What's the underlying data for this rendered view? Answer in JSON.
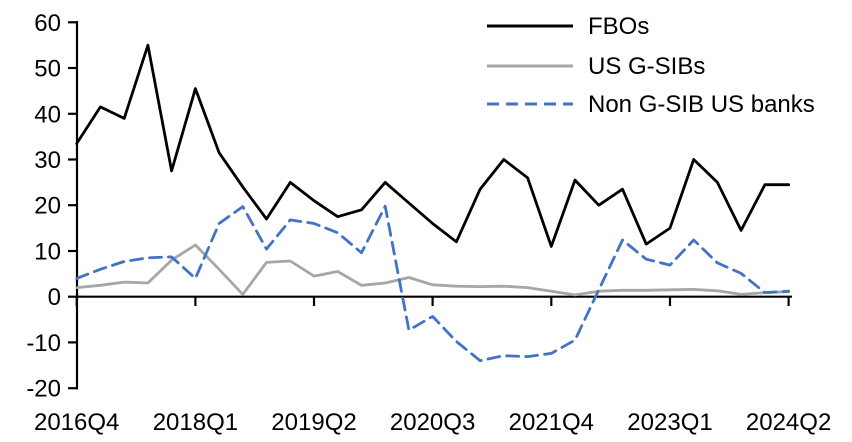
{
  "chart_data": {
    "type": "line",
    "title": "",
    "xlabel": "",
    "ylabel": "",
    "ylim": [
      -20,
      60
    ],
    "yticks": [
      60,
      50,
      40,
      30,
      20,
      10,
      0,
      -10,
      -20
    ],
    "grid": false,
    "axis_color": "#000000",
    "legend_position": "top-right",
    "x_label_every": 5,
    "x_labels_shown": [
      "2016Q4",
      "2018Q1",
      "2019Q2",
      "2020Q3",
      "2021Q4",
      "2023Q1",
      "2024Q2"
    ],
    "categories": [
      "2016Q4",
      "2017Q1",
      "2017Q2",
      "2017Q3",
      "2017Q4",
      "2018Q1",
      "2018Q2",
      "2018Q3",
      "2018Q4",
      "2019Q1",
      "2019Q2",
      "2019Q3",
      "2019Q4",
      "2020Q1",
      "2020Q2",
      "2020Q3",
      "2020Q4",
      "2021Q1",
      "2021Q2",
      "2021Q3",
      "2021Q4",
      "2022Q1",
      "2022Q2",
      "2022Q3",
      "2022Q4",
      "2023Q1",
      "2023Q2",
      "2023Q3",
      "2023Q4",
      "2024Q1",
      "2024Q2"
    ],
    "series": [
      {
        "name": "FBOs",
        "color": "#000000",
        "style": "solid",
        "values": [
          33.5,
          41.5,
          39,
          55,
          27.5,
          45.5,
          31.5,
          24,
          17,
          25,
          21,
          17.5,
          19,
          25,
          20.5,
          16,
          12,
          23.5,
          30,
          26,
          11,
          25.5,
          20,
          23.5,
          11.5,
          15,
          30,
          25,
          14.5,
          24.5,
          24.5
        ]
      },
      {
        "name": "US G-SIBs",
        "color": "#a6a6a6",
        "style": "solid",
        "values": [
          2,
          2.5,
          3.2,
          3,
          8,
          11.3,
          6,
          0.5,
          7.5,
          7.8,
          4.5,
          5.5,
          2.5,
          3,
          4.2,
          2.6,
          2.3,
          2.2,
          2.3,
          2,
          1.2,
          0.4,
          1.2,
          1.4,
          1.4,
          1.5,
          1.6,
          1.3,
          0.5,
          0.9,
          1.1
        ]
      },
      {
        "name": "Non G-SIB US banks",
        "color": "#4472c4",
        "style": "dashed",
        "values": [
          4,
          6,
          7.7,
          8.5,
          8.7,
          4,
          16,
          19.7,
          10.4,
          16.8,
          16,
          14,
          9.6,
          19.8,
          -7.3,
          -4.3,
          -9.8,
          -14,
          -12.9,
          -13.1,
          -12.4,
          -9.5,
          1.5,
          12.4,
          8.2,
          6.9,
          12.4,
          7.4,
          5.1,
          0.9,
          1.2
        ]
      }
    ]
  }
}
